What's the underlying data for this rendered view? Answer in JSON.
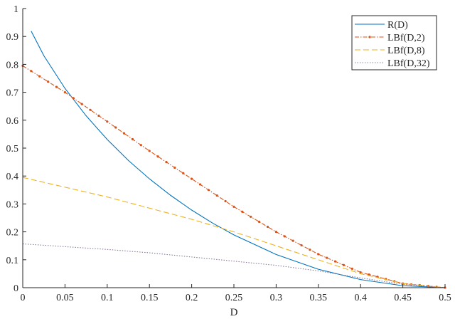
{
  "chart_data": {
    "type": "line",
    "title": "",
    "xlabel": "D",
    "ylabel": "",
    "xlim": [
      0,
      0.5
    ],
    "ylim": [
      0,
      1
    ],
    "xticks": [
      "0",
      "0.05",
      "0.1",
      "0.15",
      "0.2",
      "0.25",
      "0.3",
      "0.35",
      "0.4",
      "0.45",
      "0.5"
    ],
    "yticks": [
      "0",
      "0.1",
      "0.2",
      "0.3",
      "0.4",
      "0.5",
      "0.6",
      "0.7",
      "0.8",
      "0.9",
      "1"
    ],
    "grid": false,
    "legend_position": "top-right",
    "series": [
      {
        "name": "R(D)",
        "color": "#0072BD",
        "style": "solid",
        "x": [
          0.01,
          0.025,
          0.05,
          0.075,
          0.1,
          0.125,
          0.15,
          0.175,
          0.2,
          0.225,
          0.25,
          0.3,
          0.35,
          0.4,
          0.45,
          0.5
        ],
        "y": [
          0.919,
          0.831,
          0.714,
          0.616,
          0.531,
          0.456,
          0.39,
          0.331,
          0.278,
          0.231,
          0.189,
          0.119,
          0.066,
          0.029,
          0.007,
          0
        ]
      },
      {
        "name": "LBf(D,2)",
        "color": "#D95319",
        "style": "dashdot-markers",
        "x": [
          0,
          0.05,
          0.1,
          0.15,
          0.2,
          0.25,
          0.3,
          0.35,
          0.4,
          0.45,
          0.5
        ],
        "y": [
          0.795,
          0.7,
          0.595,
          0.49,
          0.39,
          0.29,
          0.2,
          0.12,
          0.055,
          0.015,
          0
        ]
      },
      {
        "name": "LBf(D,8)",
        "color": "#EDB120",
        "style": "dashed",
        "x": [
          0,
          0.05,
          0.1,
          0.15,
          0.2,
          0.25,
          0.3,
          0.35,
          0.4,
          0.45,
          0.5
        ],
        "y": [
          0.395,
          0.36,
          0.325,
          0.285,
          0.245,
          0.2,
          0.15,
          0.1,
          0.05,
          0.015,
          0
        ]
      },
      {
        "name": "LBf(D,32)",
        "color": "#8a7a9a",
        "style": "dotted",
        "x": [
          0,
          0.05,
          0.1,
          0.15,
          0.2,
          0.25,
          0.3,
          0.35,
          0.4,
          0.45,
          0.5
        ],
        "y": [
          0.157,
          0.147,
          0.137,
          0.125,
          0.11,
          0.095,
          0.08,
          0.06,
          0.035,
          0.012,
          0
        ]
      }
    ]
  }
}
